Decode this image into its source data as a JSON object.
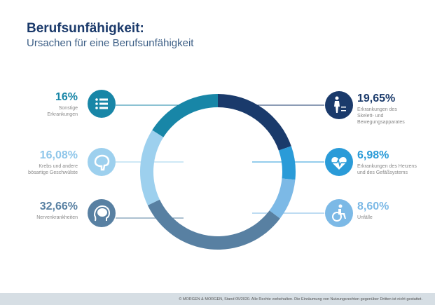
{
  "header": {
    "title": "Berufsunfähigkeit:",
    "subtitle": "Ursachen für eine Berufsunfähigkeit"
  },
  "chart_data": {
    "type": "pie",
    "variant": "donut",
    "start": "top, clockwise",
    "slices": [
      {
        "label": "Erkrankungen des Skelett- und Bewegungsapparates",
        "value": 19.65,
        "display": "19,65%",
        "color": "#1a3a6b",
        "icon": "person-with-arrows-icon",
        "side": "right"
      },
      {
        "label": "Erkrankungen des Herzens und des Gefäßsystems",
        "value": 6.98,
        "display": "6,98%",
        "color": "#2a9bd8",
        "icon": "heart-pulse-icon",
        "side": "right"
      },
      {
        "label": "Unfälle",
        "value": 8.6,
        "display": "8,60%",
        "color": "#7cb9e6",
        "icon": "wheelchair-icon",
        "side": "right"
      },
      {
        "label": "Nervenkrankheiten",
        "value": 32.66,
        "display": "32,66%",
        "color": "#5880a2",
        "icon": "head-icon",
        "side": "left"
      },
      {
        "label": "Krebs und andere bösartige Geschwülste",
        "value": 16.08,
        "display": "16,08%",
        "color": "#9dd0ee",
        "icon": "brain-icon",
        "side": "left"
      },
      {
        "label": "Sonstige Erkrankungen",
        "value": 16,
        "display": "16%",
        "color": "#1886a7",
        "icon": "list-icon",
        "side": "left"
      }
    ]
  },
  "desc_lines": {
    "0": [
      "Erkrankungen des",
      "Skelett-  und",
      "Bewegungsapparates"
    ],
    "1": [
      "Erkrankungen des Herzens",
      "und des Gefäßsystems"
    ],
    "2": [
      "Unfälle"
    ],
    "3": [
      "Nervenkrankheiten"
    ],
    "4": [
      "Krebs und andere",
      "bösartige Geschwülste"
    ],
    "5": [
      "Sonstige",
      "Erkrankungen"
    ]
  },
  "footer": "© MORGEN & MORGEN, Stand 05/2020. Alle Rechte vorbehalten. Die Einräumung von Nutzungsrechten gegenüber Dritten ist nicht gestattet."
}
